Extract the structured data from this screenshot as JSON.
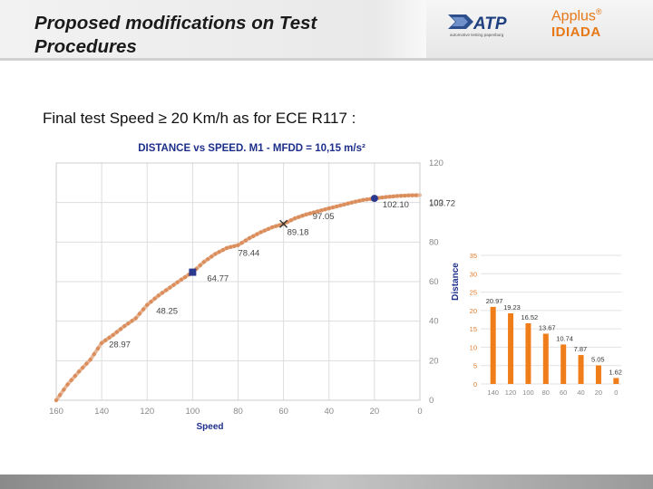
{
  "slide": {
    "title": "Proposed modifications on Test Procedures",
    "subtitle": "Final test Speed ≥ 20 Km/h as for ECE R117 :"
  },
  "logos": {
    "atp": {
      "name": "ATP",
      "tagline": "automotive testing papenburg"
    },
    "idiada": {
      "line1": "Applus",
      "mark": "®",
      "line2": "IDIADA"
    }
  },
  "colors": {
    "accent": "#e77817",
    "curve": "#d98a55",
    "marker_blue": "#2b3a8f",
    "bar": "#ef7d1a"
  },
  "chart_data": [
    {
      "type": "scatter",
      "title": "DISTANCE vs SPEED. M1 - MFDD = 10,15 m/s²",
      "xlabel": "Speed",
      "ylabel": "Distance",
      "x_reversed": true,
      "xlim": [
        160,
        0
      ],
      "ylim": [
        0,
        120
      ],
      "x_ticks": [
        160,
        140,
        120,
        100,
        80,
        60,
        40,
        20,
        0
      ],
      "y_ticks": [
        0,
        20,
        40,
        60,
        80,
        100,
        120
      ],
      "grid": true,
      "curve": {
        "x": [
          160,
          155,
          150,
          145,
          140,
          135,
          130,
          125,
          120,
          115,
          110,
          105,
          100,
          95,
          90,
          85,
          80,
          75,
          70,
          65,
          60,
          55,
          50,
          45,
          40,
          35,
          30,
          25,
          20,
          15,
          10,
          5,
          0
        ],
        "y": [
          0,
          8,
          14.5,
          20.5,
          28.97,
          33,
          37.5,
          41.5,
          48.25,
          53,
          57,
          61,
          64.77,
          70,
          74,
          77,
          78.44,
          82,
          85,
          87.5,
          89.18,
          92,
          94,
          95.5,
          97.05,
          98.5,
          100,
          101.3,
          102.1,
          102.8,
          103.3,
          103.6,
          103.72
        ]
      },
      "labels": [
        {
          "x": 140,
          "y": 28.97,
          "text": "28.97"
        },
        {
          "x": 120,
          "y": 48.25,
          "text": "48.25"
        },
        {
          "x": 100,
          "y": 64.77,
          "text": "64.77"
        },
        {
          "x": 80,
          "y": 78.44,
          "text": "78.44"
        },
        {
          "x": 60,
          "y": 89.18,
          "text": "89.18"
        },
        {
          "x": 40,
          "y": 97.05,
          "text": "97.05"
        },
        {
          "x": 20,
          "y": 102.1,
          "text": "102.10"
        },
        {
          "x": 0,
          "y": 103.72,
          "text": "103.72"
        }
      ],
      "markers": [
        {
          "x": 100,
          "y": 64.77,
          "shape": "square",
          "color": "#2b3a8f"
        },
        {
          "x": 20,
          "y": 102.1,
          "shape": "circle",
          "color": "#2b3a8f"
        },
        {
          "x": 60,
          "y": 89.18,
          "shape": "cross",
          "color": "#333333"
        }
      ]
    },
    {
      "type": "bar",
      "categories": [
        "140",
        "120",
        "100",
        "80",
        "60",
        "40",
        "20",
        "0"
      ],
      "values": [
        20.97,
        19.23,
        16.52,
        13.67,
        10.74,
        7.87,
        5.05,
        1.62
      ],
      "value_labels": [
        "20.97",
        "19.23",
        "16.52",
        "13.67",
        "10.74",
        "7.87",
        "5.05",
        "1.62"
      ],
      "ylim": [
        0,
        35
      ],
      "y_ticks": [
        0,
        5,
        10,
        15,
        20,
        25,
        30,
        35
      ],
      "grid": true
    }
  ]
}
